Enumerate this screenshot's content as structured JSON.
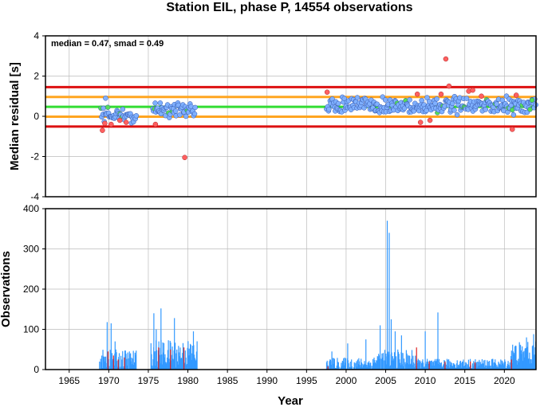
{
  "title": "Station EIL, phase P, 14554 observations",
  "stats_text": "median = 0.47, smad = 0.49",
  "colors": {
    "median_line": "#33dd33",
    "smad_lines": "#ffa520",
    "two_smad_lines": "#dd1111",
    "normal_point": "#7fb0ff",
    "outlier_point": "#ff6060",
    "median_point": "#55dd55",
    "bars": "#3399ff",
    "outlier_bars": "#dd2222",
    "grid": "#bbbbbb"
  },
  "chart_data": [
    {
      "type": "scatter",
      "name": "residuals",
      "xlabel": "",
      "ylabel": "Median residual [s]",
      "xlim": [
        1962,
        2024
      ],
      "ylim": [
        -4,
        4
      ],
      "yticks": [
        -4,
        -2,
        0,
        2,
        4
      ],
      "grid": true,
      "hlines": [
        {
          "y": 0.47,
          "kind": "median"
        },
        {
          "y": 0.96,
          "kind": "smad"
        },
        {
          "y": -0.02,
          "kind": "smad"
        },
        {
          "y": 1.45,
          "kind": "two_smad"
        },
        {
          "y": -0.51,
          "kind": "two_smad"
        }
      ],
      "segments": [
        {
          "start": 1969.0,
          "end": 1973.5,
          "center": 0.05,
          "spread": 0.45
        },
        {
          "start": 1975.5,
          "end": 1981.0,
          "center": 0.35,
          "spread": 0.45
        },
        {
          "start": 1997.5,
          "end": 2024.0,
          "center": 0.55,
          "spread": 0.5
        }
      ],
      "highlight_points": [
        {
          "x": 1969.2,
          "y": -0.7,
          "kind": "outlier"
        },
        {
          "x": 1969.5,
          "y": -0.35,
          "kind": "outlier"
        },
        {
          "x": 1970.3,
          "y": -0.4,
          "kind": "outlier"
        },
        {
          "x": 1971.4,
          "y": -0.2,
          "kind": "outlier"
        },
        {
          "x": 1972.2,
          "y": -0.3,
          "kind": "outlier"
        },
        {
          "x": 1969.6,
          "y": 0.9,
          "kind": "normal"
        },
        {
          "x": 1975.9,
          "y": -0.4,
          "kind": "outlier"
        },
        {
          "x": 1979.6,
          "y": -2.05,
          "kind": "outlier"
        },
        {
          "x": 1997.6,
          "y": 1.2,
          "kind": "outlier"
        },
        {
          "x": 2009.4,
          "y": -0.3,
          "kind": "outlier"
        },
        {
          "x": 2009.0,
          "y": 1.1,
          "kind": "outlier"
        },
        {
          "x": 2010.6,
          "y": -0.2,
          "kind": "outlier"
        },
        {
          "x": 2012.0,
          "y": 1.1,
          "kind": "outlier"
        },
        {
          "x": 2012.6,
          "y": 2.85,
          "kind": "outlier"
        },
        {
          "x": 2013.0,
          "y": 1.5,
          "kind": "outlier"
        },
        {
          "x": 2015.5,
          "y": 1.25,
          "kind": "outlier"
        },
        {
          "x": 2016.0,
          "y": 1.3,
          "kind": "outlier"
        },
        {
          "x": 2017.1,
          "y": 1.0,
          "kind": "outlier"
        },
        {
          "x": 2021.0,
          "y": -0.65,
          "kind": "outlier"
        },
        {
          "x": 2021.5,
          "y": 1.05,
          "kind": "outlier"
        },
        {
          "x": 2023.5,
          "y": 0.8,
          "kind": "median"
        }
      ]
    },
    {
      "type": "bar",
      "name": "observations",
      "xlabel": "Year",
      "ylabel": "Observations",
      "xlim": [
        1962,
        2024
      ],
      "ylim": [
        0,
        400
      ],
      "yticks": [
        0,
        100,
        200,
        300,
        400
      ],
      "xticks": [
        1965,
        1970,
        1975,
        1980,
        1985,
        1990,
        1995,
        2000,
        2005,
        2010,
        2015,
        2020
      ],
      "grid": true,
      "segments": [
        {
          "start": 1968.8,
          "end": 1973.5,
          "base": 25,
          "amp": 25
        },
        {
          "start": 1975.3,
          "end": 1981.2,
          "base": 40,
          "amp": 35
        },
        {
          "start": 1997.5,
          "end": 2003.5,
          "base": 15,
          "amp": 15
        },
        {
          "start": 2003.5,
          "end": 2009.0,
          "base": 25,
          "amp": 25
        },
        {
          "start": 2009.0,
          "end": 2020.8,
          "base": 15,
          "amp": 12
        },
        {
          "start": 2020.8,
          "end": 2024.0,
          "base": 40,
          "amp": 30
        }
      ],
      "spikes": [
        {
          "x": 1969.8,
          "y": 118
        },
        {
          "x": 1970.3,
          "y": 115
        },
        {
          "x": 1970.8,
          "y": 70
        },
        {
          "x": 1975.7,
          "y": 140
        },
        {
          "x": 1976.0,
          "y": 100
        },
        {
          "x": 1976.6,
          "y": 152
        },
        {
          "x": 1978.3,
          "y": 128
        },
        {
          "x": 1980.7,
          "y": 95
        },
        {
          "x": 1998.2,
          "y": 45
        },
        {
          "x": 2000.2,
          "y": 65
        },
        {
          "x": 2002.5,
          "y": 75
        },
        {
          "x": 2004.3,
          "y": 110
        },
        {
          "x": 2005.2,
          "y": 370
        },
        {
          "x": 2005.45,
          "y": 340
        },
        {
          "x": 2005.7,
          "y": 125
        },
        {
          "x": 2006.2,
          "y": 95
        },
        {
          "x": 2007.0,
          "y": 85
        },
        {
          "x": 2010.0,
          "y": 95
        },
        {
          "x": 2011.6,
          "y": 142
        },
        {
          "x": 2022.8,
          "y": 80
        },
        {
          "x": 2023.7,
          "y": 88
        }
      ],
      "red_bars": [
        {
          "x": 1969.9,
          "y": 45
        },
        {
          "x": 1970.6,
          "y": 35
        },
        {
          "x": 1971.2,
          "y": 25
        },
        {
          "x": 1972.0,
          "y": 30
        },
        {
          "x": 1976.3,
          "y": 55
        },
        {
          "x": 1977.8,
          "y": 50
        },
        {
          "x": 1979.5,
          "y": 55
        },
        {
          "x": 1997.7,
          "y": 8
        },
        {
          "x": 2008.9,
          "y": 55
        },
        {
          "x": 2010.5,
          "y": 20
        },
        {
          "x": 2012.5,
          "y": 20
        },
        {
          "x": 2015.7,
          "y": 20
        },
        {
          "x": 2016.3,
          "y": 18
        },
        {
          "x": 2020.9,
          "y": 25
        }
      ]
    }
  ]
}
